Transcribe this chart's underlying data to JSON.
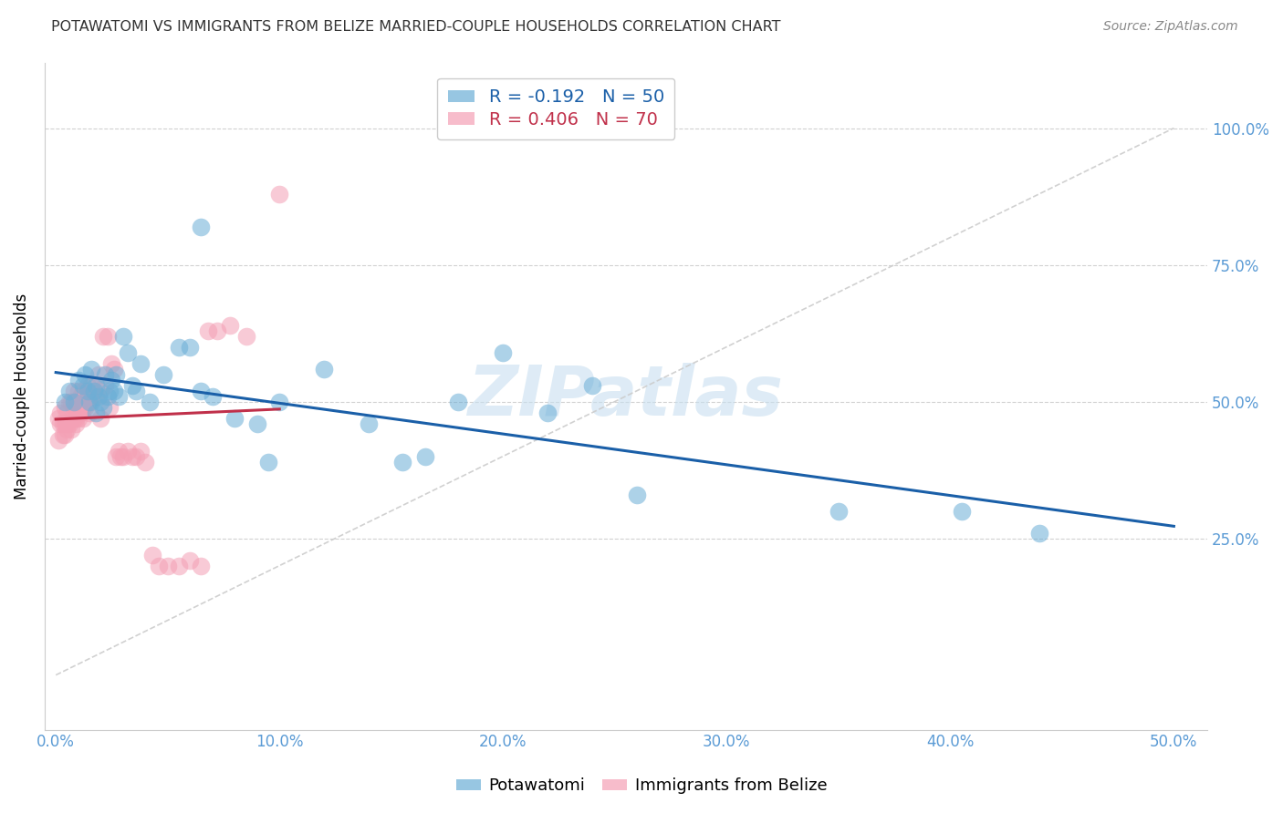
{
  "title": "POTAWATOMI VS IMMIGRANTS FROM BELIZE MARRIED-COUPLE HOUSEHOLDS CORRELATION CHART",
  "source": "Source: ZipAtlas.com",
  "xlabel_ticks": [
    "0.0%",
    "10.0%",
    "20.0%",
    "30.0%",
    "40.0%",
    "50.0%"
  ],
  "xlabel_vals": [
    0.0,
    0.1,
    0.2,
    0.3,
    0.4,
    0.5
  ],
  "ylabel_ticks": [
    "25.0%",
    "50.0%",
    "75.0%",
    "100.0%"
  ],
  "ylabel_vals": [
    0.25,
    0.5,
    0.75,
    1.0
  ],
  "ylabel_label": "Married-couple Households",
  "xlim": [
    -0.005,
    0.515
  ],
  "ylim": [
    -0.1,
    1.12
  ],
  "blue_color": "#6baed6",
  "pink_color": "#f4a0b5",
  "trend_blue": "#1a5fa8",
  "trend_pink": "#c0304a",
  "watermark": "ZIPatlas",
  "blue_x": [
    0.004,
    0.006,
    0.008,
    0.01,
    0.012,
    0.013,
    0.014,
    0.015,
    0.016,
    0.017,
    0.018,
    0.018,
    0.019,
    0.02,
    0.021,
    0.022,
    0.023,
    0.024,
    0.025,
    0.026,
    0.027,
    0.028,
    0.03,
    0.032,
    0.034,
    0.036,
    0.038,
    0.042,
    0.048,
    0.055,
    0.06,
    0.065,
    0.065,
    0.07,
    0.08,
    0.09,
    0.095,
    0.1,
    0.12,
    0.14,
    0.155,
    0.165,
    0.18,
    0.2,
    0.22,
    0.24,
    0.26,
    0.35,
    0.405,
    0.44
  ],
  "blue_y": [
    0.5,
    0.52,
    0.5,
    0.54,
    0.53,
    0.55,
    0.52,
    0.5,
    0.56,
    0.52,
    0.53,
    0.48,
    0.51,
    0.5,
    0.49,
    0.55,
    0.51,
    0.52,
    0.54,
    0.52,
    0.55,
    0.51,
    0.62,
    0.59,
    0.53,
    0.52,
    0.57,
    0.5,
    0.55,
    0.6,
    0.6,
    0.82,
    0.52,
    0.51,
    0.47,
    0.46,
    0.39,
    0.5,
    0.56,
    0.46,
    0.39,
    0.4,
    0.5,
    0.59,
    0.48,
    0.53,
    0.33,
    0.3,
    0.3,
    0.26
  ],
  "pink_x": [
    0.001,
    0.001,
    0.002,
    0.002,
    0.003,
    0.003,
    0.004,
    0.004,
    0.004,
    0.005,
    0.005,
    0.005,
    0.006,
    0.006,
    0.007,
    0.007,
    0.007,
    0.008,
    0.008,
    0.008,
    0.009,
    0.009,
    0.009,
    0.01,
    0.01,
    0.01,
    0.011,
    0.011,
    0.012,
    0.012,
    0.012,
    0.013,
    0.013,
    0.014,
    0.014,
    0.015,
    0.015,
    0.016,
    0.016,
    0.017,
    0.018,
    0.019,
    0.02,
    0.02,
    0.021,
    0.022,
    0.023,
    0.024,
    0.025,
    0.026,
    0.027,
    0.028,
    0.029,
    0.03,
    0.032,
    0.034,
    0.036,
    0.038,
    0.04,
    0.043,
    0.046,
    0.05,
    0.055,
    0.06,
    0.065,
    0.068,
    0.072,
    0.078,
    0.085,
    0.1
  ],
  "pink_y": [
    0.47,
    0.43,
    0.46,
    0.48,
    0.46,
    0.44,
    0.46,
    0.49,
    0.44,
    0.46,
    0.48,
    0.45,
    0.46,
    0.5,
    0.47,
    0.45,
    0.5,
    0.47,
    0.49,
    0.52,
    0.47,
    0.5,
    0.46,
    0.5,
    0.47,
    0.52,
    0.48,
    0.51,
    0.49,
    0.52,
    0.47,
    0.51,
    0.49,
    0.5,
    0.53,
    0.48,
    0.51,
    0.5,
    0.53,
    0.52,
    0.51,
    0.55,
    0.47,
    0.52,
    0.62,
    0.53,
    0.62,
    0.49,
    0.57,
    0.56,
    0.4,
    0.41,
    0.4,
    0.4,
    0.41,
    0.4,
    0.4,
    0.41,
    0.39,
    0.22,
    0.2,
    0.2,
    0.2,
    0.21,
    0.2,
    0.63,
    0.63,
    0.64,
    0.62,
    0.88
  ]
}
